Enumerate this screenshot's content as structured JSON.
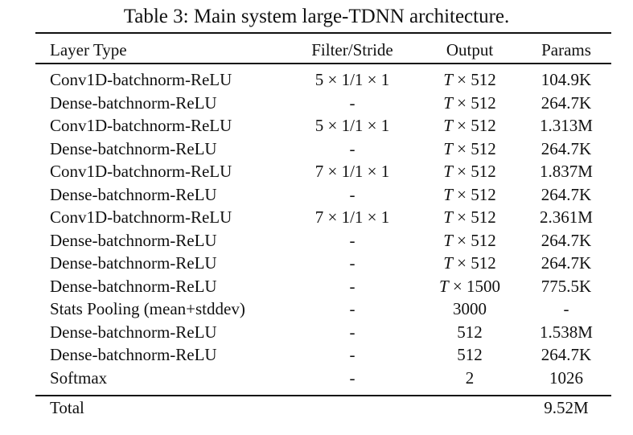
{
  "caption": "Table 3: Main system large-TDNN architecture.",
  "columns": {
    "layer_type": "Layer Type",
    "filter_stride": "Filter/Stride",
    "output": "Output",
    "params": "Params"
  },
  "rows": [
    {
      "layer": "Conv1D-batchnorm-ReLU",
      "filter": "5 × 1/1 × 1",
      "output_var": "T",
      "output": " × 512",
      "params": "104.9K"
    },
    {
      "layer": "Dense-batchnorm-ReLU",
      "filter": "-",
      "output_var": "T",
      "output": " × 512",
      "params": "264.7K"
    },
    {
      "layer": "Conv1D-batchnorm-ReLU",
      "filter": "5 × 1/1 × 1",
      "output_var": "T",
      "output": " × 512",
      "params": "1.313M"
    },
    {
      "layer": "Dense-batchnorm-ReLU",
      "filter": "-",
      "output_var": "T",
      "output": " × 512",
      "params": "264.7K"
    },
    {
      "layer": "Conv1D-batchnorm-ReLU",
      "filter": "7 × 1/1 × 1",
      "output_var": "T",
      "output": " × 512",
      "params": "1.837M"
    },
    {
      "layer": "Dense-batchnorm-ReLU",
      "filter": "-",
      "output_var": "T",
      "output": " × 512",
      "params": "264.7K"
    },
    {
      "layer": "Conv1D-batchnorm-ReLU",
      "filter": "7 × 1/1 × 1",
      "output_var": "T",
      "output": " × 512",
      "params": "2.361M"
    },
    {
      "layer": "Dense-batchnorm-ReLU",
      "filter": "-",
      "output_var": "T",
      "output": " × 512",
      "params": "264.7K"
    },
    {
      "layer": "Dense-batchnorm-ReLU",
      "filter": "-",
      "output_var": "T",
      "output": " × 512",
      "params": "264.7K"
    },
    {
      "layer": "Dense-batchnorm-ReLU",
      "filter": "-",
      "output_var": "T",
      "output": " × 1500",
      "params": "775.5K"
    },
    {
      "layer": "Stats Pooling (mean+stddev)",
      "filter": "-",
      "output_var": "",
      "output": "3000",
      "params": "-"
    },
    {
      "layer": "Dense-batchnorm-ReLU",
      "filter": "-",
      "output_var": "",
      "output": "512",
      "params": "1.538M"
    },
    {
      "layer": "Dense-batchnorm-ReLU",
      "filter": "-",
      "output_var": "",
      "output": "512",
      "params": "264.7K"
    },
    {
      "layer": "Softmax",
      "filter": "-",
      "output_var": "",
      "output": "2",
      "params": "1026"
    }
  ],
  "total": {
    "label": "Total",
    "params": "9.52M"
  }
}
